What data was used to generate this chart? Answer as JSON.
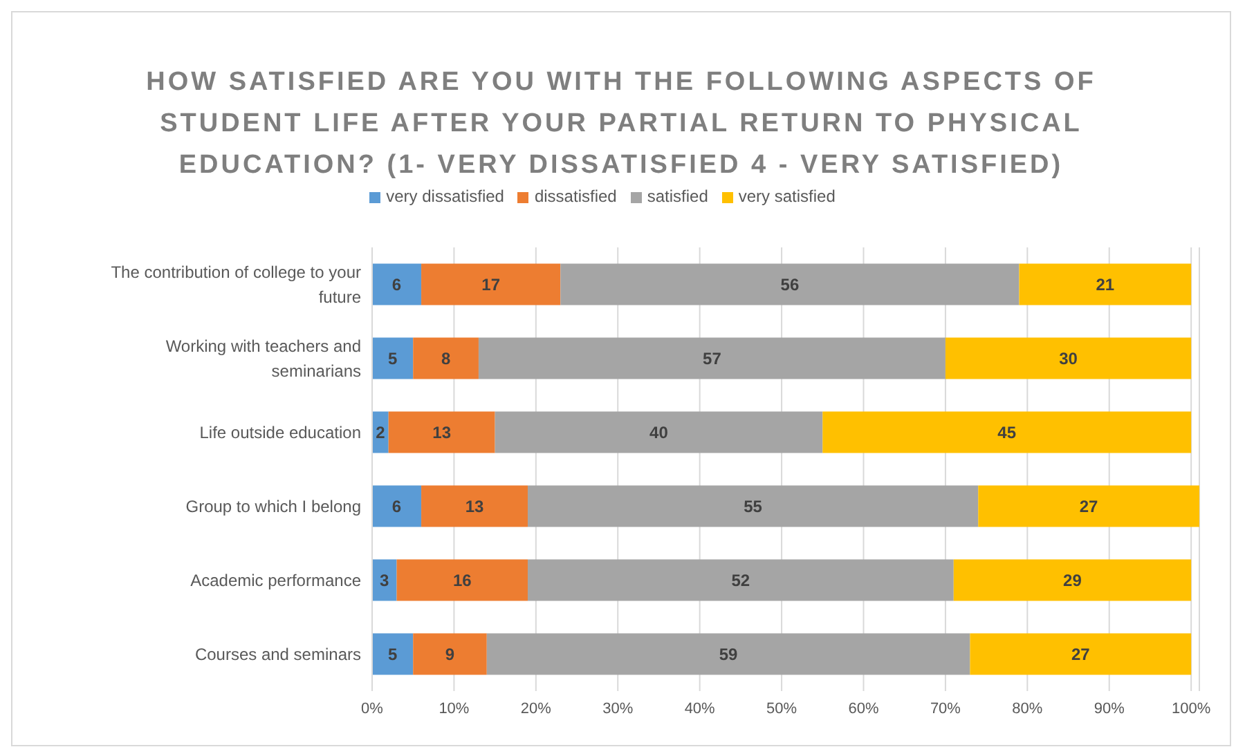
{
  "chart_data": {
    "type": "bar",
    "orientation": "horizontal",
    "stacked": true,
    "title": "HOW SATISFIED ARE YOU WITH THE FOLLOWING ASPECTS OF STUDENT LIFE AFTER YOUR PARTIAL RETURN TO PHYSICAL EDUCATION? (1- VERY DISSATISFIED 4 - VERY SATISFIED)",
    "categories": [
      "The contribution of college to your future",
      "Working with teachers and seminarians",
      "Life outside education",
      "Group to which I belong",
      "Academic performance",
      "Courses and seminars"
    ],
    "series": [
      {
        "name": "very dissatisfied",
        "color": "#5b9bd5",
        "values": [
          6,
          5,
          2,
          6,
          3,
          5
        ]
      },
      {
        "name": "dissatisfied",
        "color": "#ed7d31",
        "values": [
          17,
          8,
          13,
          13,
          16,
          9
        ]
      },
      {
        "name": "satisfied",
        "color": "#a5a5a5",
        "values": [
          56,
          57,
          40,
          55,
          52,
          59
        ]
      },
      {
        "name": "very satisfied",
        "color": "#ffc000",
        "values": [
          21,
          30,
          45,
          27,
          29,
          27
        ]
      }
    ],
    "xlim": [
      0,
      101
    ],
    "xticks": [
      {
        "value": 0,
        "label": "0%"
      },
      {
        "value": 10,
        "label": "10%"
      },
      {
        "value": 20,
        "label": "20%"
      },
      {
        "value": 30,
        "label": "30%"
      },
      {
        "value": 40,
        "label": "40%"
      },
      {
        "value": 50,
        "label": "50%"
      },
      {
        "value": 60,
        "label": "60%"
      },
      {
        "value": 70,
        "label": "70%"
      },
      {
        "value": 80,
        "label": "80%"
      },
      {
        "value": 90,
        "label": "90%"
      },
      {
        "value": 100,
        "label": "100%"
      }
    ],
    "grid": "x",
    "legend": "top",
    "data_labels": true
  }
}
